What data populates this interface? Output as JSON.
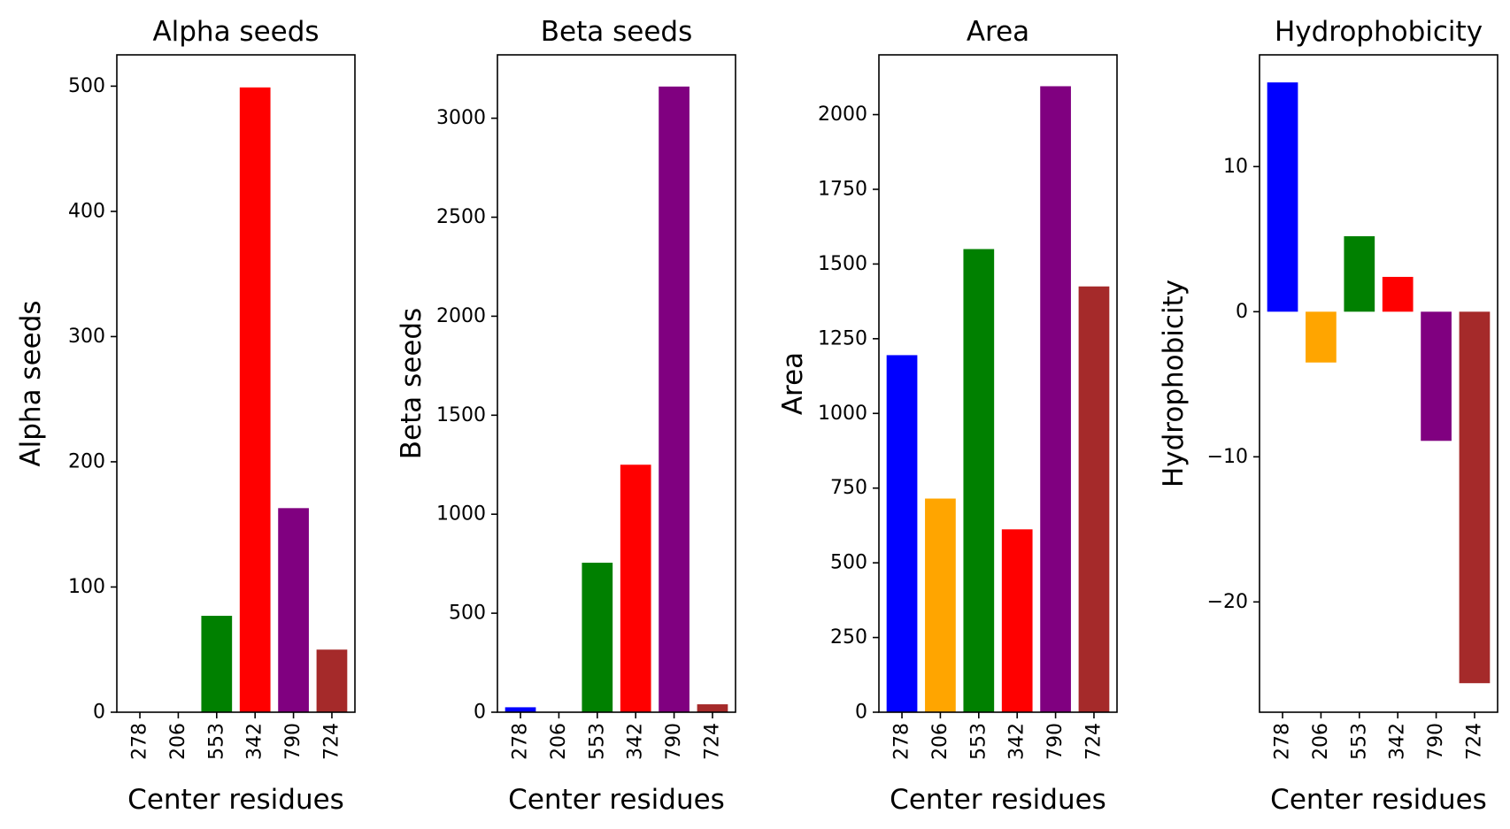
{
  "chart_data": [
    {
      "type": "bar",
      "title": "Alpha seeds",
      "xlabel": "Center residues",
      "ylabel": "Alpha seeds",
      "categories": [
        "278",
        "206",
        "553",
        "342",
        "790",
        "724"
      ],
      "values": [
        0,
        0,
        77,
        499,
        163,
        50
      ],
      "colors": [
        "#0000ff",
        "#ffa500",
        "#008000",
        "#ff0000",
        "#800080",
        "#a52a2a"
      ],
      "ylim": [
        0,
        525
      ],
      "yticks": [
        0,
        100,
        200,
        300,
        400,
        500
      ],
      "ytick_labels": [
        "0",
        "100",
        "200",
        "300",
        "400",
        "500"
      ],
      "grid": false
    },
    {
      "type": "bar",
      "title": "Beta seeds",
      "xlabel": "Center residues",
      "ylabel": "Beta seeds",
      "categories": [
        "278",
        "206",
        "553",
        "342",
        "790",
        "724"
      ],
      "values": [
        25,
        0,
        755,
        1250,
        3160,
        40
      ],
      "colors": [
        "#0000ff",
        "#ffa500",
        "#008000",
        "#ff0000",
        "#800080",
        "#a52a2a"
      ],
      "ylim": [
        0,
        3320
      ],
      "yticks": [
        0,
        500,
        1000,
        1500,
        2000,
        2500,
        3000
      ],
      "ytick_labels": [
        "0",
        "500",
        "1000",
        "1500",
        "2000",
        "2500",
        "3000"
      ],
      "grid": false
    },
    {
      "type": "bar",
      "title": "Area",
      "xlabel": "Center residues",
      "ylabel": "Area",
      "categories": [
        "278",
        "206",
        "553",
        "342",
        "790",
        "724"
      ],
      "values": [
        1195,
        715,
        1550,
        612,
        2095,
        1425
      ],
      "colors": [
        "#0000ff",
        "#ffa500",
        "#008000",
        "#ff0000",
        "#800080",
        "#a52a2a"
      ],
      "ylim": [
        0,
        2200
      ],
      "yticks": [
        0,
        250,
        500,
        750,
        1000,
        1250,
        1500,
        1750,
        2000
      ],
      "ytick_labels": [
        "0",
        "250",
        "500",
        "750",
        "1000",
        "1250",
        "1500",
        "1750",
        "2000"
      ],
      "grid": false
    },
    {
      "type": "bar",
      "title": "Hydrophobicity",
      "xlabel": "Center residues",
      "ylabel": "Hydrophobicity",
      "categories": [
        "278",
        "206",
        "553",
        "342",
        "790",
        "724"
      ],
      "values": [
        15.8,
        -3.5,
        5.2,
        2.4,
        -8.9,
        -25.6
      ],
      "colors": [
        "#0000ff",
        "#ffa500",
        "#008000",
        "#ff0000",
        "#800080",
        "#a52a2a"
      ],
      "ylim": [
        -27.6,
        17.7
      ],
      "yticks": [
        -20,
        -10,
        0,
        10
      ],
      "ytick_labels": [
        "−20",
        "−10",
        "0",
        "10"
      ],
      "grid": false
    }
  ]
}
